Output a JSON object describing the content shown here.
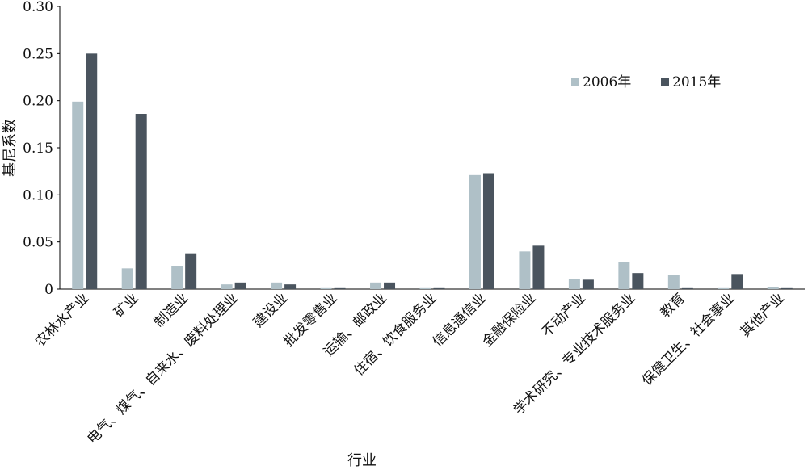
{
  "chart_data": {
    "type": "bar",
    "title": "",
    "xlabel": "行业",
    "ylabel": "基尼系数",
    "ylim": [
      0,
      0.3
    ],
    "yticks": [
      "0",
      "0.05",
      "0.10",
      "0.15",
      "0.20",
      "0.25",
      "0.30"
    ],
    "grid": false,
    "legend_position": "top-right",
    "categories": [
      "农林水产业",
      "矿业",
      "制造业",
      "电气、煤气、自来水、废料处理业",
      "建设业",
      "批发零售业",
      "运输、邮政业",
      "住宿、饮食服务业",
      "信息通信业",
      "金融保险业",
      "不动产业",
      "学术研究、专业技术服务业",
      "教育",
      "保健卫生、社会事业",
      "其他产业"
    ],
    "series": [
      {
        "name": "2006年",
        "color": "#afc0c7",
        "values": [
          0.199,
          0.022,
          0.024,
          0.005,
          0.007,
          0.001,
          0.007,
          0.001,
          0.121,
          0.04,
          0.011,
          0.029,
          0.015,
          0.001,
          0.002
        ]
      },
      {
        "name": "2015年",
        "color": "#4a545e",
        "values": [
          0.25,
          0.186,
          0.038,
          0.007,
          0.005,
          0.001,
          0.007,
          0.001,
          0.123,
          0.046,
          0.01,
          0.017,
          0.001,
          0.016,
          0.001
        ]
      }
    ]
  }
}
